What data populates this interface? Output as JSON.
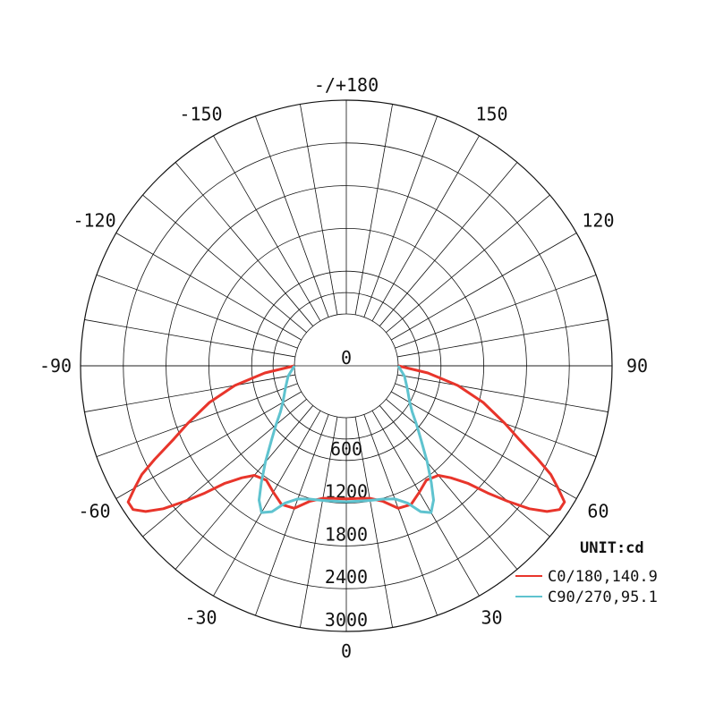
{
  "chart_data": {
    "type": "polar",
    "unit_label": "UNIT:cd",
    "radial_ticks": [
      "0",
      "600",
      "1200",
      "1800",
      "2400",
      "3000"
    ],
    "radial_max": 3000,
    "angle_labels": [
      {
        "angle": 0,
        "text": "0"
      },
      {
        "angle": 30,
        "text": "30"
      },
      {
        "angle": 60,
        "text": "60"
      },
      {
        "angle": 90,
        "text": "90"
      },
      {
        "angle": 120,
        "text": "120"
      },
      {
        "angle": 150,
        "text": "150"
      },
      {
        "angle": 180,
        "text": "-/+180"
      },
      {
        "angle": -150,
        "text": "-150"
      },
      {
        "angle": -120,
        "text": "-120"
      },
      {
        "angle": -90,
        "text": "-90"
      },
      {
        "angle": -60,
        "text": "-60"
      },
      {
        "angle": -30,
        "text": "-30"
      }
    ],
    "series": [
      {
        "name": "C0/180,140.9",
        "color": "#e8352b",
        "points": [
          [
            -90,
            0
          ],
          [
            -85,
            420
          ],
          [
            -80,
            860
          ],
          [
            -75,
            1260
          ],
          [
            -70,
            1640
          ],
          [
            -67,
            1900
          ],
          [
            -64,
            2260
          ],
          [
            -62,
            2520
          ],
          [
            -60,
            2700
          ],
          [
            -58,
            2880
          ],
          [
            -56,
            2880
          ],
          [
            -54,
            2750
          ],
          [
            -52,
            2530
          ],
          [
            -50,
            2230
          ],
          [
            -48,
            1940
          ],
          [
            -46,
            1650
          ],
          [
            -43,
            1420
          ],
          [
            -40,
            1280
          ],
          [
            -35,
            1230
          ],
          [
            -30,
            1320
          ],
          [
            -25,
            1420
          ],
          [
            -20,
            1400
          ],
          [
            -15,
            1240
          ],
          [
            -10,
            1160
          ],
          [
            -5,
            1140
          ],
          [
            0,
            1140
          ],
          [
            5,
            1140
          ],
          [
            10,
            1160
          ],
          [
            15,
            1240
          ],
          [
            20,
            1400
          ],
          [
            25,
            1420
          ],
          [
            30,
            1320
          ],
          [
            35,
            1230
          ],
          [
            40,
            1280
          ],
          [
            43,
            1420
          ],
          [
            46,
            1650
          ],
          [
            48,
            1940
          ],
          [
            50,
            2230
          ],
          [
            52,
            2530
          ],
          [
            54,
            2750
          ],
          [
            56,
            2880
          ],
          [
            58,
            2880
          ],
          [
            60,
            2700
          ],
          [
            62,
            2520
          ],
          [
            64,
            2260
          ],
          [
            67,
            1900
          ],
          [
            70,
            1640
          ],
          [
            75,
            1260
          ],
          [
            80,
            860
          ],
          [
            85,
            420
          ],
          [
            90,
            0
          ]
        ]
      },
      {
        "name": "C90/270,95.1",
        "color": "#5fc3cf",
        "points": [
          [
            -90,
            0
          ],
          [
            -80,
            100
          ],
          [
            -70,
            180
          ],
          [
            -60,
            300
          ],
          [
            -55,
            400
          ],
          [
            -50,
            560
          ],
          [
            -45,
            760
          ],
          [
            -40,
            1040
          ],
          [
            -36,
            1300
          ],
          [
            -33,
            1520
          ],
          [
            -30,
            1650
          ],
          [
            -27,
            1570
          ],
          [
            -24,
            1380
          ],
          [
            -20,
            1260
          ],
          [
            -15,
            1210
          ],
          [
            -10,
            1190
          ],
          [
            -5,
            1180
          ],
          [
            0,
            1180
          ],
          [
            5,
            1180
          ],
          [
            10,
            1190
          ],
          [
            15,
            1210
          ],
          [
            20,
            1260
          ],
          [
            24,
            1380
          ],
          [
            27,
            1570
          ],
          [
            30,
            1650
          ],
          [
            33,
            1520
          ],
          [
            36,
            1300
          ],
          [
            40,
            1040
          ],
          [
            45,
            760
          ],
          [
            50,
            560
          ],
          [
            55,
            400
          ],
          [
            60,
            300
          ],
          [
            70,
            180
          ],
          [
            80,
            100
          ],
          [
            90,
            0
          ]
        ]
      }
    ]
  }
}
